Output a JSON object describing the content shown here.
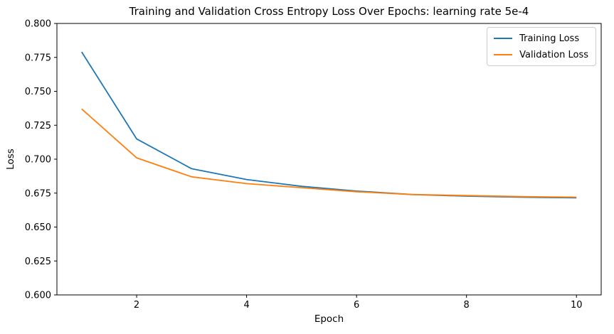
{
  "chart_data": {
    "type": "line",
    "title": "Training and Validation Cross Entropy Loss Over Epochs: learning rate 5e-4",
    "xlabel": "Epoch",
    "ylabel": "Loss",
    "x": [
      1,
      2,
      3,
      4,
      5,
      6,
      7,
      8,
      9,
      10
    ],
    "series": [
      {
        "name": "Training Loss",
        "color": "#1f77b4",
        "values": [
          0.779,
          0.715,
          0.693,
          0.685,
          0.68,
          0.6765,
          0.674,
          0.6728,
          0.672,
          0.6715
        ]
      },
      {
        "name": "Validation Loss",
        "color": "#ff7f0e",
        "values": [
          0.737,
          0.701,
          0.687,
          0.682,
          0.679,
          0.676,
          0.674,
          0.6732,
          0.6724,
          0.672
        ]
      }
    ],
    "xlim": [
      0.55,
      10.45
    ],
    "ylim": [
      0.6,
      0.8
    ],
    "xticks": [
      2,
      4,
      6,
      8,
      10
    ],
    "xtick_labels": [
      "2",
      "4",
      "6",
      "8",
      "10"
    ],
    "yticks": [
      0.8,
      0.775,
      0.75,
      0.725,
      0.7,
      0.675,
      0.65,
      0.625,
      0.6
    ],
    "ytick_labels": [
      "0.800",
      "0.775",
      "0.750",
      "0.725",
      "0.700",
      "0.675",
      "0.650",
      "0.625",
      "0.600"
    ],
    "grid": false,
    "legend_position": "upper right"
  },
  "colors": {
    "background": "#ffffff",
    "spine": "#000000",
    "legend_border": "#cccccc"
  }
}
